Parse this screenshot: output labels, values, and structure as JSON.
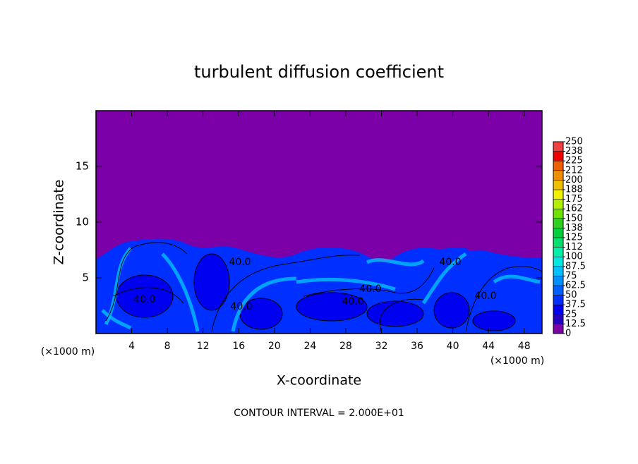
{
  "chart_data": {
    "type": "heatmap",
    "title": "turbulent diffusion coefficient",
    "x_label": "X-coordinate",
    "y_label": "Z-coordinate",
    "x_unit": "(×1000 m)",
    "y_unit": "(×1000 m)",
    "xlim": [
      0,
      50
    ],
    "xticks": [
      4,
      8,
      12,
      16,
      20,
      24,
      28,
      32,
      36,
      40,
      44,
      48
    ],
    "ylim": [
      0,
      20
    ],
    "yticks": [
      5,
      10,
      15
    ],
    "contour_labels": [
      "40.0",
      "40.0",
      "40.0",
      "40.0",
      "40.0",
      "40.0",
      "40.0"
    ],
    "footer": "CONTOUR INTERVAL = 2.000E+01",
    "colorbar": {
      "ticks": [
        0,
        12.5,
        25,
        37.5,
        50,
        62.5,
        75,
        87.5,
        100,
        {
          "value": 112.5,
          "label": "112"
        },
        125,
        {
          "value": 137.5,
          "label": "138"
        },
        150,
        {
          "value": 162.5,
          "label": "162"
        },
        175,
        {
          "value": 187.5,
          "label": "188"
        },
        200,
        {
          "value": 212.5,
          "label": "212"
        },
        225,
        {
          "value": 237.5,
          "label": "238"
        },
        250
      ],
      "colors": [
        "#7c00a8",
        "#2400c0",
        "#0000f0",
        "#0030ff",
        "#0060ff",
        "#0090ff",
        "#00c0ff",
        "#00e8e0",
        "#00f0a8",
        "#00e070",
        "#00d040",
        "#30d020",
        "#70e000",
        "#b0f000",
        "#f0f000",
        "#f0c000",
        "#f09000",
        "#f06000",
        "#f00000",
        "#f04040",
        "#f08080"
      ]
    }
  }
}
